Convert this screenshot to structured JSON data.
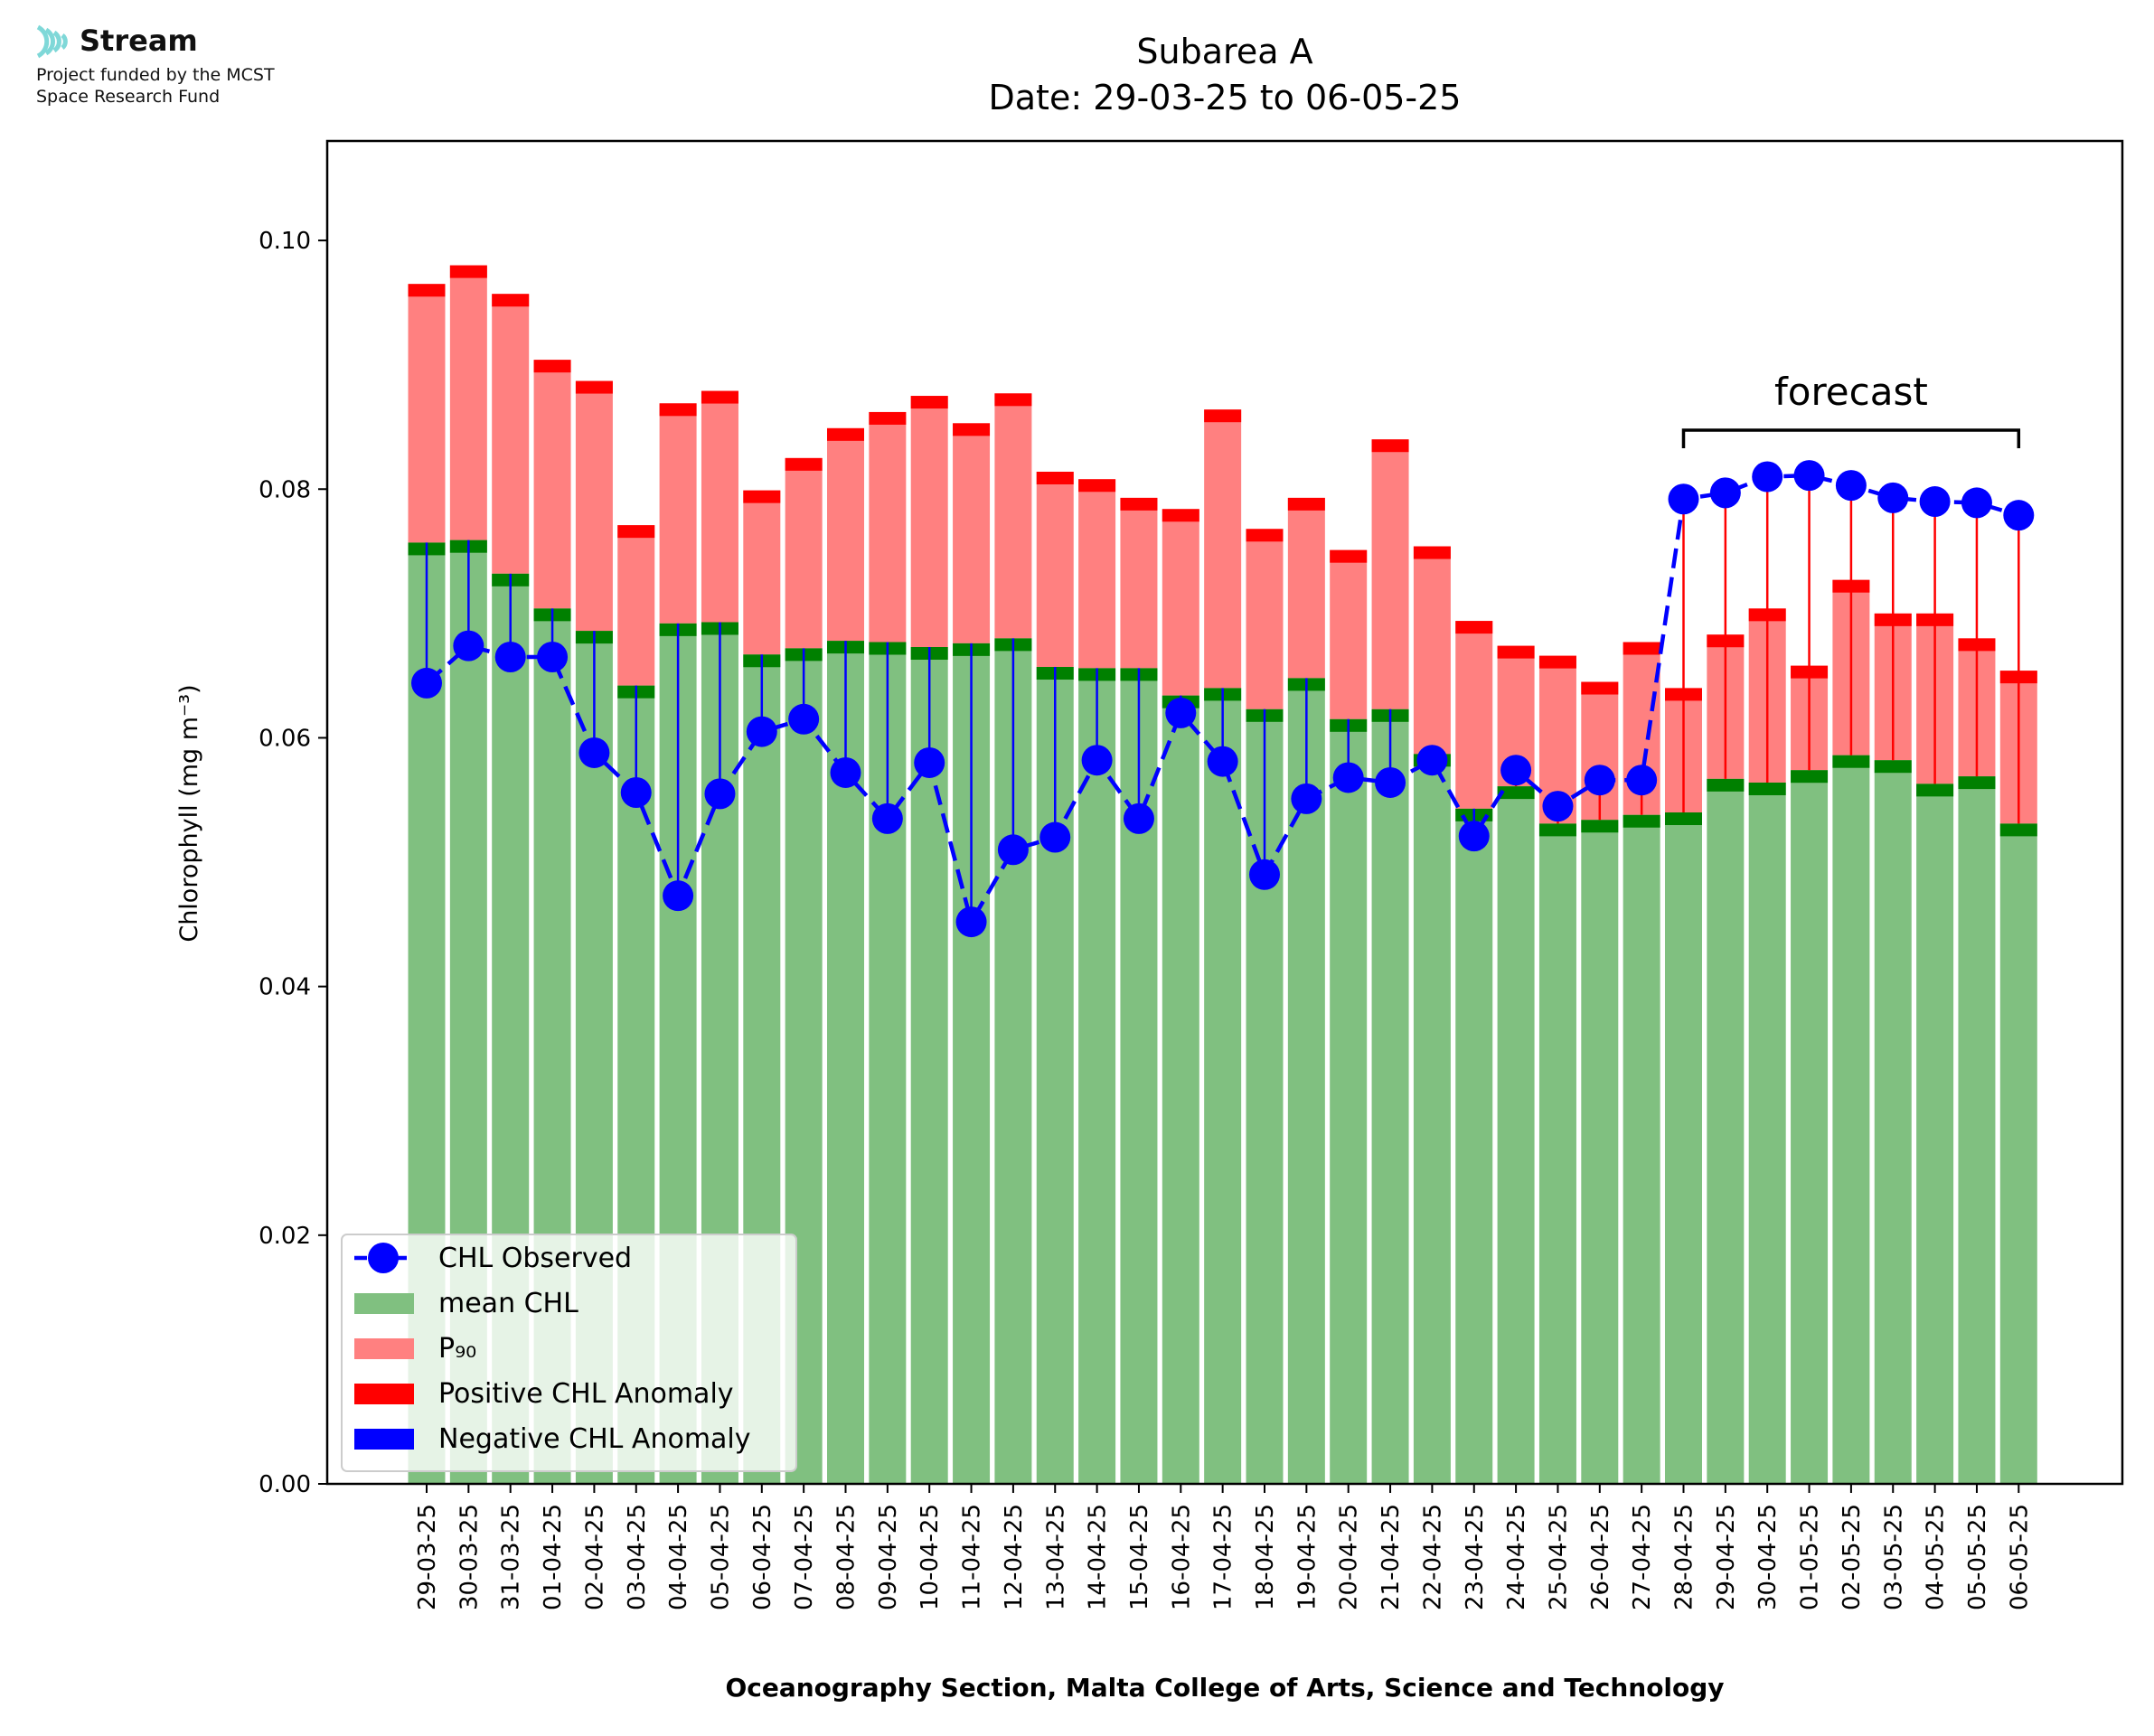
{
  "branding": {
    "logo_text": "Stream",
    "funding_line1": "Project funded by the MCST",
    "funding_line2": "Space Research Fund"
  },
  "chart_data": {
    "type": "bar",
    "title": "Subarea A",
    "subtitle": "Date: 29-03-25 to 06-05-25",
    "xlabel": "Oceanography Section, Malta College of Arts, Science and Technology",
    "ylabel": "Chlorophyll (mg m⁻³)",
    "ylim": [
      0,
      0.108
    ],
    "yticks": [
      "0.00",
      "0.02",
      "0.04",
      "0.06",
      "0.08",
      "0.10"
    ],
    "grid": false,
    "legend_position": "bottom-left",
    "annotation": "forecast",
    "forecast_start_index": 30,
    "categories": [
      "29-03-25",
      "30-03-25",
      "31-03-25",
      "01-04-25",
      "02-04-25",
      "03-04-25",
      "04-04-25",
      "05-04-25",
      "06-04-25",
      "07-04-25",
      "08-04-25",
      "09-04-25",
      "10-04-25",
      "11-04-25",
      "12-04-25",
      "13-04-25",
      "14-04-25",
      "15-04-25",
      "16-04-25",
      "17-04-25",
      "18-04-25",
      "19-04-25",
      "20-04-25",
      "21-04-25",
      "22-04-25",
      "23-04-25",
      "24-04-25",
      "25-04-25",
      "26-04-25",
      "27-04-25",
      "28-04-25",
      "29-04-25",
      "30-04-25",
      "01-05-25",
      "02-05-25",
      "03-05-25",
      "04-05-25",
      "05-05-25",
      "06-05-25"
    ],
    "series": [
      {
        "name": "CHL Observed",
        "color": "#0000ff",
        "values": [
          0.0644,
          0.0674,
          0.0665,
          0.0665,
          0.0588,
          0.0556,
          0.0473,
          0.0555,
          0.0605,
          0.0615,
          0.0572,
          0.0535,
          0.058,
          0.0452,
          0.051,
          0.052,
          0.0582,
          0.0535,
          0.062,
          0.0581,
          0.049,
          0.0551,
          0.0568,
          0.0564,
          0.0582,
          0.0521,
          0.0574,
          0.0545,
          0.0566,
          0.0566,
          0.0792,
          0.0797,
          0.081,
          0.0811,
          0.0803,
          0.0793,
          0.079,
          0.0789,
          0.0779
        ]
      },
      {
        "name": "mean CHL",
        "color": "#80c080",
        "values": [
          0.0757,
          0.0759,
          0.0732,
          0.0704,
          0.0686,
          0.0642,
          0.0692,
          0.0693,
          0.0667,
          0.0672,
          0.0678,
          0.0677,
          0.0673,
          0.0676,
          0.068,
          0.0657,
          0.0656,
          0.0656,
          0.0634,
          0.064,
          0.0623,
          0.0648,
          0.0615,
          0.0623,
          0.0587,
          0.0543,
          0.0561,
          0.0531,
          0.0534,
          0.0538,
          0.054,
          0.0567,
          0.0564,
          0.0574,
          0.0586,
          0.0582,
          0.0563,
          0.0569,
          0.0531
        ]
      },
      {
        "name": "P₉₀",
        "color": "#ff8080",
        "values": [
          0.0965,
          0.098,
          0.0957,
          0.0904,
          0.0887,
          0.0771,
          0.0869,
          0.0879,
          0.0799,
          0.0825,
          0.0849,
          0.0862,
          0.0875,
          0.0853,
          0.0877,
          0.0814,
          0.0808,
          0.0793,
          0.0784,
          0.0864,
          0.0768,
          0.0793,
          0.0751,
          0.084,
          0.0754,
          0.0694,
          0.0674,
          0.0666,
          0.0645,
          0.0677,
          0.064,
          0.0683,
          0.0704,
          0.0658,
          0.0727,
          0.07,
          0.07,
          0.068,
          0.0654
        ]
      },
      {
        "name": "Positive CHL Anomaly",
        "color": "#ff0000"
      },
      {
        "name": "Negative CHL Anomaly",
        "color": "#0000ff"
      }
    ],
    "legend": [
      "CHL Observed",
      "mean CHL",
      "P₉₀",
      "Positive CHL Anomaly",
      "Negative CHL Anomaly"
    ]
  }
}
